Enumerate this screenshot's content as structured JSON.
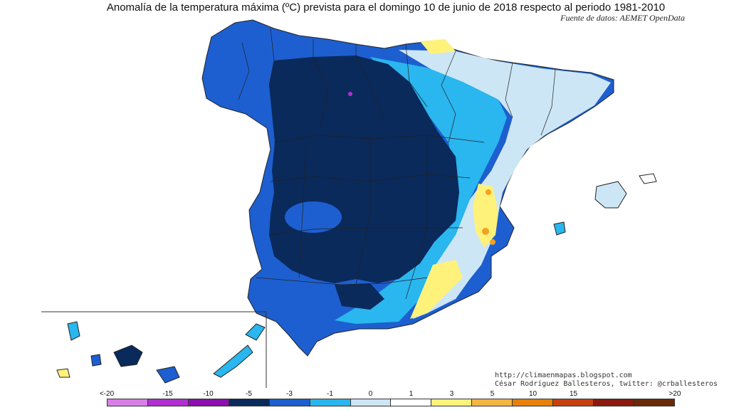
{
  "title": "Anomalía de la temperatura máxima (ºC) prevista para el domingo 10 de junio de 2018 respecto al periodo 1981-2010",
  "source": "Fuente de datos: AEMET OpenData",
  "credits": {
    "url": "http://climaenmapas.blogspot.com",
    "author": "César Rodríguez Ballesteros, twitter: @crballesteros"
  },
  "legend": {
    "labels": [
      "<-20",
      "-15",
      "-10",
      "-5",
      "-3",
      "-1",
      "0",
      "1",
      "3",
      "5",
      "10",
      "15",
      ">20"
    ],
    "colors": [
      "#d97ee8",
      "#b030d0",
      "#8a10b0",
      "#0a2a5c",
      "#1d5fd0",
      "#2ab6ee",
      "#cde6f5",
      "#ffffff",
      "#fff27a",
      "#f5b640",
      "#e8800a",
      "#c84010",
      "#8a1a10",
      "#6a2a08"
    ]
  },
  "colors": {
    "deep_blue": "#0a2a5c",
    "mid_blue": "#1d5fd0",
    "cyan": "#2ab6ee",
    "pale_blue": "#cde6f5",
    "yellow": "#fff27a",
    "orange": "#f5a020"
  }
}
